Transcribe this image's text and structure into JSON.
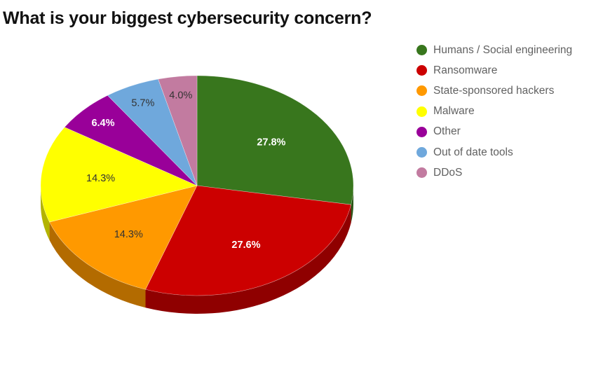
{
  "chart_data": {
    "type": "pie",
    "variant": "3d",
    "title": "What is your biggest cybersecurity concern?",
    "categories": [
      "Humans / Social engineering",
      "Ransomware",
      "State-sponsored hackers",
      "Malware",
      "Other",
      "Out of date tools",
      "DDoS"
    ],
    "values": [
      27.8,
      27.6,
      14.3,
      14.3,
      6.4,
      5.7,
      4.0
    ],
    "labels": [
      "27.8%",
      "27.6%",
      "14.3%",
      "14.3%",
      "6.4%",
      "5.7%",
      "4.0%"
    ],
    "colors": [
      "#38761d",
      "#cc0000",
      "#ff9900",
      "#ffff00",
      "#990099",
      "#6fa8dc",
      "#c27ba0"
    ],
    "side_colors": [
      "#285514",
      "#8f0000",
      "#b36b00",
      "#b3b300",
      "#6b006b",
      "#4e769a",
      "#885670"
    ],
    "label_colors": [
      "#ffffff",
      "#ffffff",
      "#333333",
      "#333333",
      "#ffffff",
      "#333333",
      "#333333"
    ],
    "label_bold": [
      true,
      true,
      false,
      false,
      true,
      false,
      false
    ],
    "legend_position": "right",
    "start_angle_deg": 0,
    "direction": "clockwise"
  },
  "legend": {
    "items": [
      {
        "label": "Humans / Social engineering",
        "color": "#38761d"
      },
      {
        "label": "Ransomware",
        "color": "#cc0000"
      },
      {
        "label": "State-sponsored hackers",
        "color": "#ff9900"
      },
      {
        "label": "Malware",
        "color": "#ffff00"
      },
      {
        "label": "Other",
        "color": "#990099"
      },
      {
        "label": "Out of date tools",
        "color": "#6fa8dc"
      },
      {
        "label": "DDoS",
        "color": "#c27ba0"
      }
    ]
  }
}
